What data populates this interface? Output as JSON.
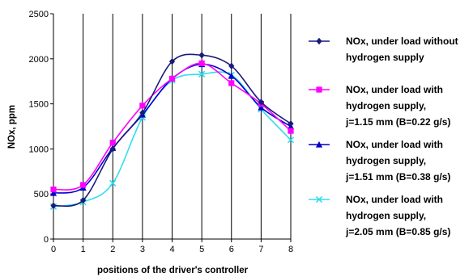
{
  "chart_data": {
    "type": "line",
    "title": "",
    "xlabel": "positions of the driver's controller",
    "ylabel": "NOx, ppm",
    "x": [
      0,
      1,
      2,
      3,
      4,
      5,
      6,
      7,
      8
    ],
    "xlim": [
      0,
      8
    ],
    "ylim": [
      0,
      2500
    ],
    "yticks": [
      0,
      500,
      1000,
      1500,
      2000,
      2500
    ],
    "xticks": [
      0,
      1,
      2,
      3,
      4,
      5,
      6,
      7,
      8
    ],
    "grid": "vertical",
    "legend_position": "right",
    "series": [
      {
        "name": "NOx, under load without hydrogen supply",
        "legend_lines": [
          "NOx, under load without",
          "hydrogen supply"
        ],
        "color": "#1a1a7a",
        "marker": "diamond",
        "values": [
          370,
          430,
          1000,
          1400,
          1970,
          2040,
          1920,
          1520,
          1280
        ]
      },
      {
        "name": "NOx, under load with hydrogen supply, j=1.15 mm (B=0.22 g/s)",
        "legend_lines": [
          "NOx, under load with",
          "hydrogen supply,",
          "j=1.15 mm (B=0.22 g/s)"
        ],
        "color": "#ff00ff",
        "marker": "square",
        "values": [
          550,
          600,
          1070,
          1480,
          1780,
          1950,
          1730,
          1500,
          1200
        ]
      },
      {
        "name": "NOx, under load with hydrogen supply, j=1.51 mm (B=0.38 g/s)",
        "legend_lines": [
          "NOx, under load with",
          "hydrogen supply,",
          "j=1.51 mm (B=0.38 g/s)"
        ],
        "color": "#0000cc",
        "marker": "triangle",
        "values": [
          510,
          570,
          1010,
          1380,
          1780,
          1940,
          1810,
          1460,
          1250
        ]
      },
      {
        "name": "NOx, under load with hydrogen supply, j=2.05 mm (B=0.85 g/s)",
        "legend_lines": [
          "NOx, under load with",
          "hydrogen supply,",
          "j=2.05 mm (B=0.85 g/s)"
        ],
        "color": "#33ddee",
        "marker": "x",
        "values": [
          360,
          410,
          620,
          1350,
          1760,
          1830,
          1820,
          1440,
          1100
        ]
      }
    ]
  }
}
